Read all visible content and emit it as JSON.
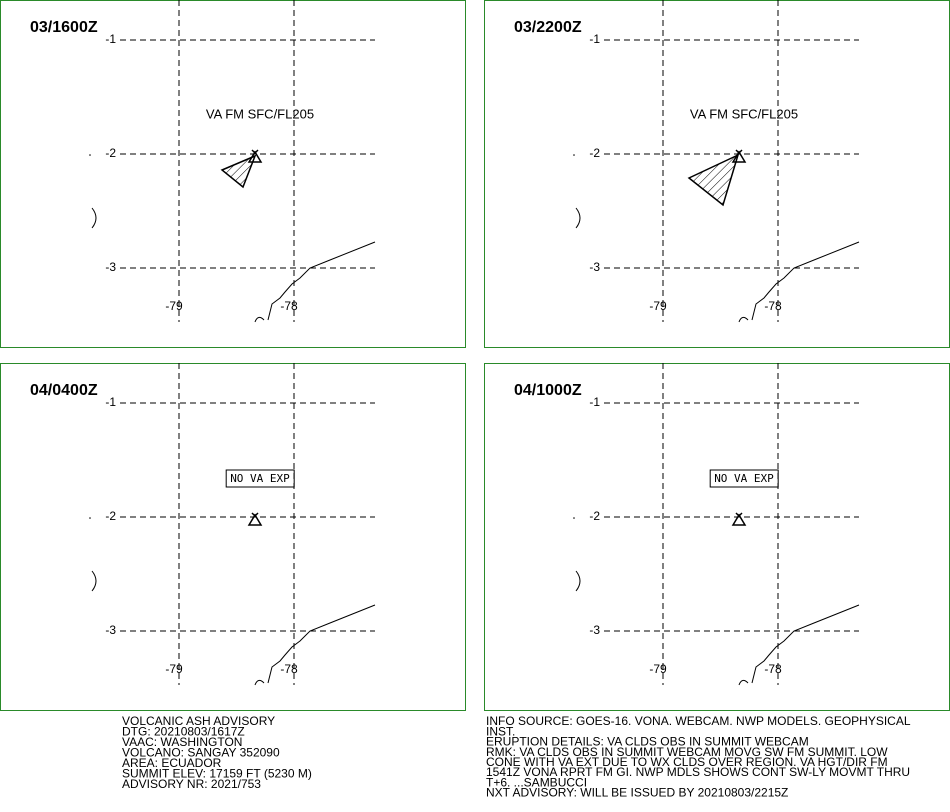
{
  "map_labels": {
    "lat": [
      "-1",
      "-2",
      "-3"
    ],
    "lon": [
      "-79",
      "-78"
    ]
  },
  "panels": [
    {
      "time": "03/1600Z",
      "annotation": "VA FM SFC/FL205"
    },
    {
      "time": "03/2200Z",
      "annotation": "VA FM SFC/FL205"
    },
    {
      "time": "04/0400Z",
      "annotation": "NO VA EXP"
    },
    {
      "time": "04/1000Z",
      "annotation": "NO VA EXP"
    }
  ],
  "advisory": [
    "VOLCANIC ASH ADVISORY",
    "DTG: 20210803/1617Z",
    "VAAC: WASHINGTON",
    "VOLCANO: SANGAY 352090",
    "AREA: ECUADOR",
    "SUMMIT ELEV: 17159 FT (5230 M)",
    "ADVISORY NR: 2021/753"
  ],
  "info": [
    "INFO SOURCE: GOES-16. VONA. WEBCAM. NWP MODELS. GEOPHYSICAL",
    "INST.",
    "ERUPTION DETAILS: VA CLDS OBS IN SUMMIT WEBCAM",
    "RMK: VA CLDS OBS IN SUMMIT WEBCAM MOVG SW FM SUMMIT. LOW",
    "CONE WITH VA EXT DUE TO WX CLDS OVER REGION. VA HGT/DIR FM",
    "1541Z VONA RPRT FM GI. NWP MDLS SHOWS CONT SW-LY MOVMT THRU",
    "T+6. ...SAMBUCCI",
    "NXT ADVISORY: WILL BE ISSUED BY 20210803/2215Z"
  ]
}
